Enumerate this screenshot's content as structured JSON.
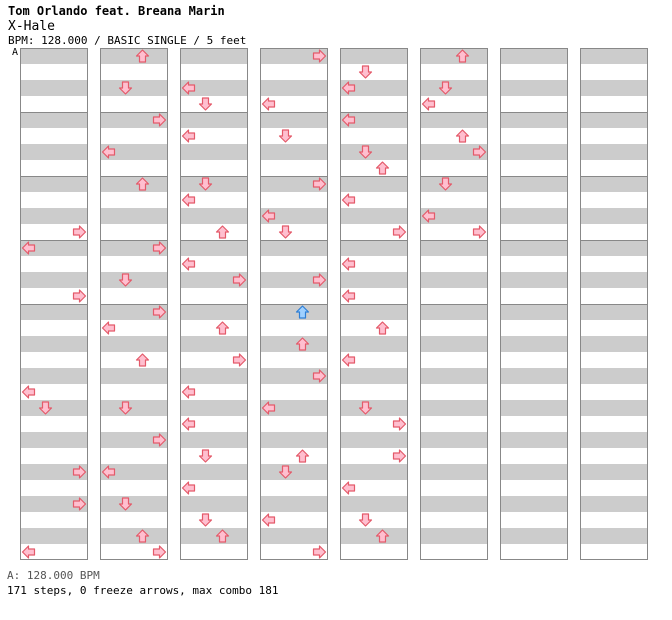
{
  "song": {
    "artist": "Tom Orlando feat. Breana Marin",
    "title": "X-Hale",
    "info": "BPM: 128.000 / BASIC SINGLE / 5 feet",
    "marker": "A"
  },
  "footer": {
    "bpm_line": "A: 128.000 BPM",
    "stats_line": "171 steps, 0 freeze arrows, max combo 181"
  },
  "colors": {
    "stripe": "#cccccc",
    "lane_bg": "#ffffff",
    "border": "#888888",
    "red_fill": "#ffbfcf",
    "red_stroke": "#e45a6a",
    "blue_fill": "#9fd0ff",
    "blue_stroke": "#2e7fd6"
  },
  "chart_data": {
    "type": "step-chart",
    "columns": 8,
    "rows_per_column": 32,
    "lanes": [
      "left",
      "down",
      "up",
      "right"
    ],
    "notes": [
      [
        [
          11,
          "R",
          "r"
        ],
        [
          12,
          "L",
          "r"
        ],
        [
          15,
          "R",
          "r"
        ],
        [
          21,
          "L",
          "r"
        ],
        [
          22,
          "D",
          "r"
        ],
        [
          26,
          "R",
          "r"
        ]
      ],
      [
        [
          28,
          "R",
          "r"
        ],
        [
          31,
          "L",
          "r"
        ],
        [
          32,
          "U",
          "r"
        ],
        [
          34,
          "D",
          "r"
        ],
        [
          36,
          "R",
          "r"
        ],
        [
          38,
          "L",
          "r"
        ]
      ],
      [
        [
          40,
          "U",
          "r"
        ],
        [
          44,
          "R",
          "r"
        ],
        [
          46,
          "D",
          "r"
        ],
        [
          48,
          "R",
          "r"
        ],
        [
          49,
          "L",
          "r"
        ],
        [
          51,
          "U",
          "r"
        ]
      ],
      [
        [
          54,
          "D",
          "r"
        ],
        [
          56,
          "R",
          "r"
        ],
        [
          58,
          "L",
          "r"
        ],
        [
          60,
          "D",
          "r"
        ],
        [
          62,
          "U",
          "r"
        ],
        [
          63,
          "R",
          "r"
        ]
      ],
      [
        [
          66,
          "L",
          "r"
        ],
        [
          67,
          "D",
          "r"
        ],
        [
          69,
          "L",
          "r"
        ],
        [
          72,
          "D",
          "r"
        ],
        [
          73,
          "L",
          "r"
        ],
        [
          75,
          "U",
          "r"
        ]
      ],
      [
        [
          77,
          "L",
          "r"
        ],
        [
          78,
          "R",
          "r"
        ],
        [
          81,
          "U",
          "r"
        ],
        [
          83,
          "R",
          "r"
        ],
        [
          85,
          "L",
          "r"
        ],
        [
          87,
          "L",
          "r"
        ],
        [
          89,
          "D",
          "r"
        ]
      ],
      [
        [
          91,
          "L",
          "r"
        ],
        [
          93,
          "D",
          "r"
        ],
        [
          94,
          "U",
          "r"
        ],
        [
          96,
          "R",
          "r"
        ],
        [
          99,
          "L",
          "r"
        ],
        [
          101,
          "D",
          "r"
        ],
        [
          104,
          "R",
          "r"
        ]
      ],
      [
        [
          106,
          "L",
          "r"
        ],
        [
          107,
          "D",
          "r"
        ],
        [
          110,
          "R",
          "r"
        ],
        [
          112,
          "U",
          "b"
        ],
        [
          114,
          "U",
          "r"
        ],
        [
          116,
          "R",
          "r"
        ],
        [
          118,
          "L",
          "r"
        ]
      ],
      [
        [
          121,
          "U",
          "r"
        ],
        [
          122,
          "D",
          "r"
        ],
        [
          125,
          "L",
          "r"
        ],
        [
          127,
          "R",
          "r"
        ],
        [
          129,
          "D",
          "r"
        ],
        [
          130,
          "L",
          "r"
        ],
        [
          132,
          "L",
          "r"
        ]
      ],
      [
        [
          134,
          "D",
          "r"
        ],
        [
          135,
          "U",
          "r"
        ],
        [
          137,
          "L",
          "r"
        ],
        [
          139,
          "R",
          "r"
        ],
        [
          141,
          "L",
          "r"
        ],
        [
          143,
          "L",
          "r"
        ],
        [
          145,
          "U",
          "r"
        ],
        [
          147,
          "L",
          "r"
        ]
      ],
      [
        [
          150,
          "D",
          "r"
        ],
        [
          151,
          "R",
          "r"
        ],
        [
          153,
          "R",
          "r"
        ],
        [
          155,
          "L",
          "r"
        ],
        [
          157,
          "D",
          "r"
        ],
        [
          158,
          "U",
          "r"
        ],
        [
          160,
          "U",
          "r"
        ],
        [
          162,
          "D",
          "r"
        ]
      ],
      [
        [
          163,
          "L",
          "r"
        ],
        [
          165,
          "U",
          "r"
        ],
        [
          166,
          "R",
          "r"
        ],
        [
          168,
          "D",
          "r"
        ],
        [
          170,
          "L",
          "r"
        ],
        [
          171,
          "R",
          "r"
        ]
      ]
    ],
    "counts": {
      "steps": 171,
      "freeze_arrows": 0,
      "max_combo": 181,
      "bpm": 128.0
    }
  }
}
